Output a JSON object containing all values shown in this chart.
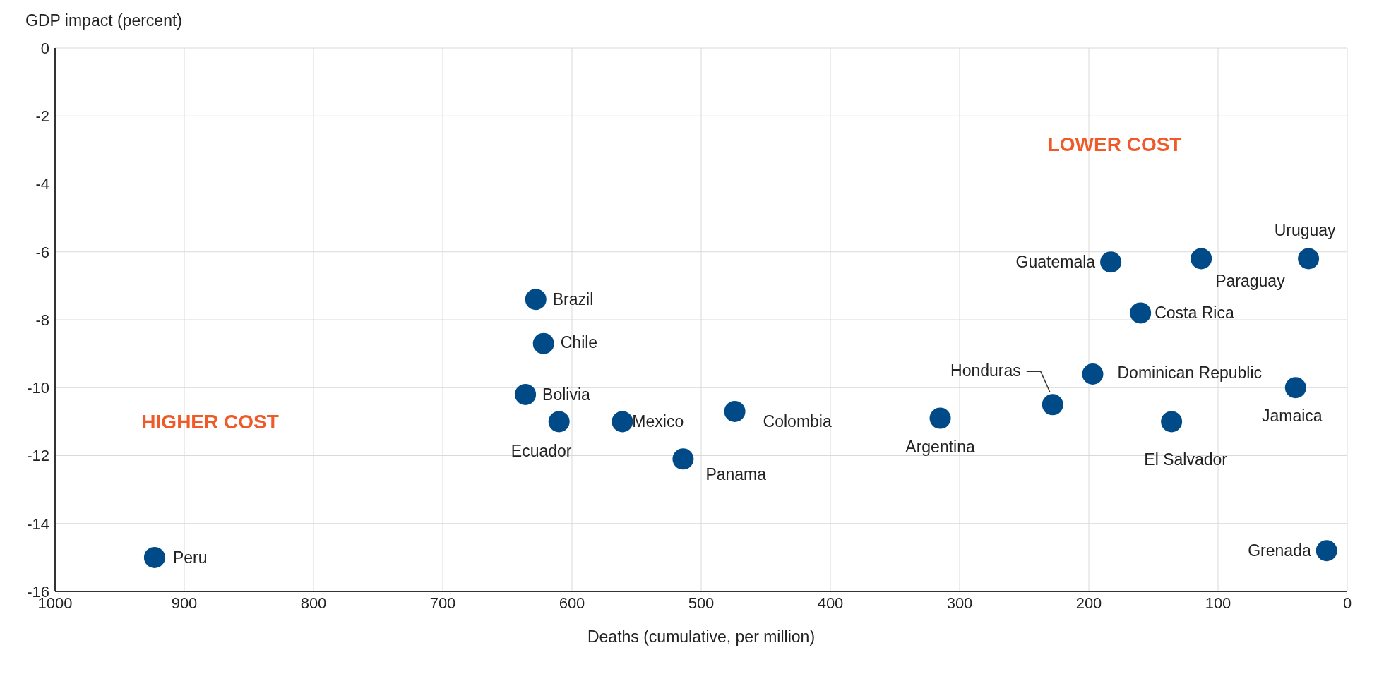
{
  "chart_data": {
    "type": "scatter",
    "xlabel": "Deaths (cumulative, per million)",
    "ylabel": "GDP impact (percent)",
    "x": [
      923,
      628,
      622,
      636,
      610,
      561,
      514,
      474,
      315,
      228,
      197,
      183,
      160,
      113,
      136,
      30,
      40,
      16
    ],
    "series": [
      {
        "color": "#004b87",
        "values": [
          -15.0,
          -7.4,
          -8.7,
          -10.2,
          -11.0,
          -11.0,
          -12.1,
          -10.7,
          -10.9,
          -10.5,
          -9.6,
          -6.3,
          -7.8,
          -6.2,
          -11.0,
          -6.2,
          -10.0,
          -14.8
        ]
      }
    ],
    "xlim": [
      1000,
      0
    ],
    "xticks": [
      1000,
      900,
      800,
      700,
      600,
      500,
      400,
      300,
      200,
      100,
      0
    ],
    "ylim": [
      -16,
      0
    ],
    "yticks": [
      -16,
      -14,
      -12,
      -10,
      -8,
      -6,
      -4,
      -2,
      0
    ],
    "grid": true,
    "marker": "circle",
    "annotations": [
      "HIGHER COST",
      "LOWER COST",
      {
        "text": "Peru",
        "x": 923,
        "y": -15.0
      },
      {
        "text": "Brazil",
        "x": 628,
        "y": -7.4
      },
      {
        "text": "Chile",
        "x": 622,
        "y": -8.7
      },
      {
        "text": "Bolivia",
        "x": 636,
        "y": -10.2
      },
      {
        "text": "Ecuador",
        "x": 610,
        "y": -11.0
      },
      {
        "text": "Mexico",
        "x": 561,
        "y": -11.0
      },
      {
        "text": "Panama",
        "x": 514,
        "y": -12.1
      },
      {
        "text": "Colombia",
        "x": 474,
        "y": -10.7
      },
      {
        "text": "Argentina",
        "x": 315,
        "y": -10.9
      },
      {
        "text": "Honduras",
        "x": 228,
        "y": -10.5
      },
      {
        "text": "Dominican Republic",
        "x": 197,
        "y": -9.6
      },
      {
        "text": "Guatemala",
        "x": 183,
        "y": -6.3
      },
      {
        "text": "Costa Rica",
        "x": 160,
        "y": -7.8
      },
      {
        "text": "Paraguay",
        "x": 113,
        "y": -6.2
      },
      {
        "text": "El Salvador",
        "x": 136,
        "y": -11.0
      },
      {
        "text": "Uruguay",
        "x": 30,
        "y": -6.2
      },
      {
        "text": "Jamaica",
        "x": 40,
        "y": -10.0
      },
      {
        "text": "Grenada",
        "x": 16,
        "y": -14.8
      }
    ]
  }
}
